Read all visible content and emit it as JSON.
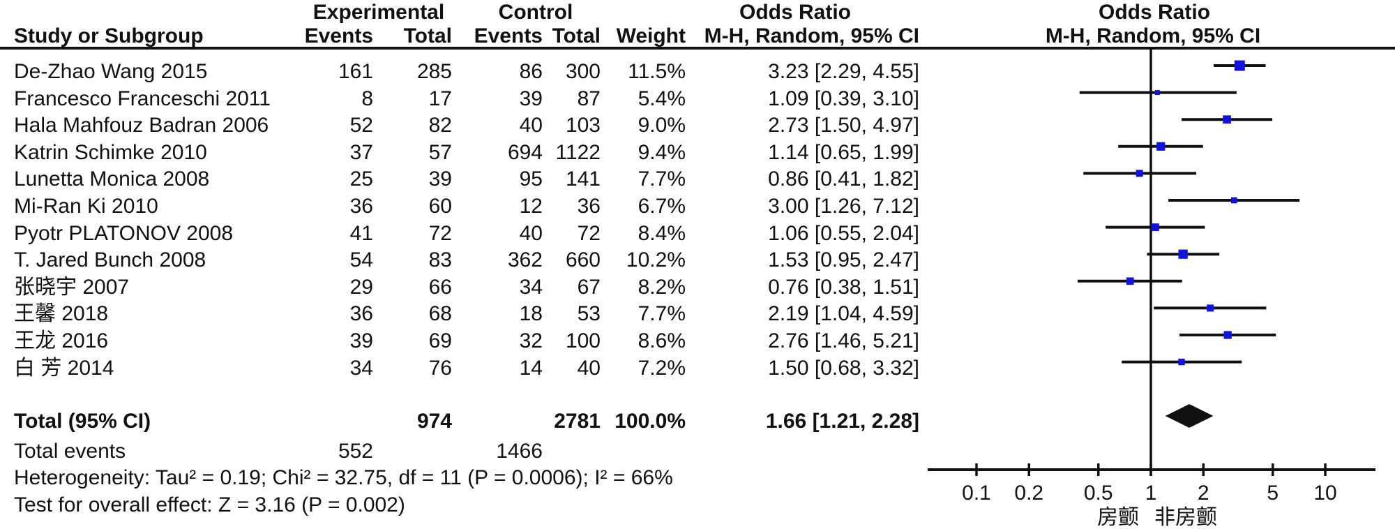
{
  "header": {
    "col_group_experimental": "Experimental",
    "col_group_control": "Control",
    "odds_ratio_left": "Odds Ratio",
    "odds_ratio_right": "Odds Ratio",
    "study_or_subgroup": "Study or Subgroup",
    "exp_events": "Events",
    "exp_total": "Total",
    "ctl_events": "Events",
    "ctl_total": "Total",
    "weight": "Weight",
    "mh_random_ci_left": "M-H, Random, 95% CI",
    "mh_random_ci_right": "M-H, Random, 95% CI"
  },
  "totals": {
    "label": "Total (95% CI)",
    "exp_total": 974,
    "ctl_total": 2781,
    "weight_pct": 100.0,
    "or": 1.66,
    "lo": 1.21,
    "hi": 2.28,
    "total_events_label": "Total events",
    "exp_events_total": 552,
    "ctl_events_total": 1466
  },
  "stats": {
    "heterogeneity": "Heterogeneity: Tau² = 0.19; Chi² = 32.75, df = 11 (P = 0.0006); I² = 66%",
    "overall_effect": "Test for overall effect: Z = 3.16 (P = 0.002)"
  },
  "chart_data": {
    "type": "forest",
    "x_scale": "log10",
    "x_ticks": [
      0.1,
      0.2,
      0.5,
      1,
      2,
      5,
      10
    ],
    "x_axis_range": [
      0.052,
      19.5
    ],
    "vline_at": 1,
    "axis_label_left": "房颤",
    "axis_label_right": "非房颤",
    "marker_color": "#1212dd",
    "line_color": "#111111",
    "points": [
      {
        "label": "De-Zhao Wang 2015",
        "exp_events": 161,
        "exp_total": 285,
        "ctl_events": 86,
        "ctl_total": 300,
        "weight_pct": 11.5,
        "or": 3.23,
        "lo": 2.29,
        "hi": 4.55
      },
      {
        "label": "Francesco Franceschi 2011",
        "exp_events": 8,
        "exp_total": 17,
        "ctl_events": 39,
        "ctl_total": 87,
        "weight_pct": 5.4,
        "or": 1.09,
        "lo": 0.39,
        "hi": 3.1
      },
      {
        "label": "Hala Mahfouz Badran 2006",
        "exp_events": 52,
        "exp_total": 82,
        "ctl_events": 40,
        "ctl_total": 103,
        "weight_pct": 9.0,
        "or": 2.73,
        "lo": 1.5,
        "hi": 4.97
      },
      {
        "label": "Katrin Schimke 2010",
        "exp_events": 37,
        "exp_total": 57,
        "ctl_events": 694,
        "ctl_total": 1122,
        "weight_pct": 9.4,
        "or": 1.14,
        "lo": 0.65,
        "hi": 1.99
      },
      {
        "label": "Lunetta Monica 2008",
        "exp_events": 25,
        "exp_total": 39,
        "ctl_events": 95,
        "ctl_total": 141,
        "weight_pct": 7.7,
        "or": 0.86,
        "lo": 0.41,
        "hi": 1.82
      },
      {
        "label": "Mi-Ran Ki 2010",
        "exp_events": 36,
        "exp_total": 60,
        "ctl_events": 12,
        "ctl_total": 36,
        "weight_pct": 6.7,
        "or": 3.0,
        "lo": 1.26,
        "hi": 7.12
      },
      {
        "label": "Pyotr PLATONOV 2008",
        "exp_events": 41,
        "exp_total": 72,
        "ctl_events": 40,
        "ctl_total": 72,
        "weight_pct": 8.4,
        "or": 1.06,
        "lo": 0.55,
        "hi": 2.04
      },
      {
        "label": "T. Jared Bunch 2008",
        "exp_events": 54,
        "exp_total": 83,
        "ctl_events": 362,
        "ctl_total": 660,
        "weight_pct": 10.2,
        "or": 1.53,
        "lo": 0.95,
        "hi": 2.47
      },
      {
        "label": "张晓宇 2007",
        "exp_events": 29,
        "exp_total": 66,
        "ctl_events": 34,
        "ctl_total": 67,
        "weight_pct": 8.2,
        "or": 0.76,
        "lo": 0.38,
        "hi": 1.51
      },
      {
        "label": "王馨 2018",
        "exp_events": 36,
        "exp_total": 68,
        "ctl_events": 18,
        "ctl_total": 53,
        "weight_pct": 7.7,
        "or": 2.19,
        "lo": 1.04,
        "hi": 4.59
      },
      {
        "label": "王龙 2016",
        "exp_events": 39,
        "exp_total": 69,
        "ctl_events": 32,
        "ctl_total": 100,
        "weight_pct": 8.6,
        "or": 2.76,
        "lo": 1.46,
        "hi": 5.21
      },
      {
        "label": "白 芳 2014",
        "exp_events": 34,
        "exp_total": 76,
        "ctl_events": 14,
        "ctl_total": 40,
        "weight_pct": 7.2,
        "or": 1.5,
        "lo": 0.68,
        "hi": 3.32
      }
    ],
    "diamond": {
      "or": 1.66,
      "lo": 1.21,
      "hi": 2.28
    }
  }
}
